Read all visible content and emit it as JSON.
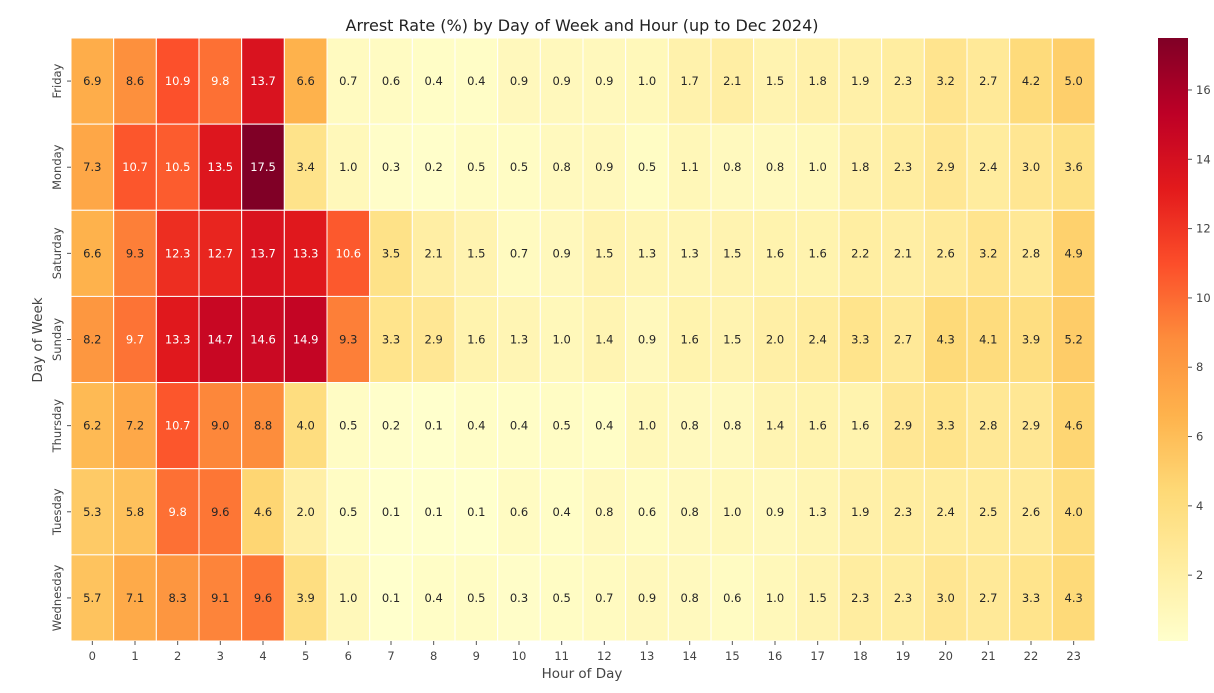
{
  "chart_data": {
    "type": "heatmap",
    "title": "Arrest Rate (%) by Day of Week and Hour (up to Dec 2024)",
    "xlabel": "Hour of Day",
    "ylabel": "Day of Week",
    "x": [
      "0",
      "1",
      "2",
      "3",
      "4",
      "5",
      "6",
      "7",
      "8",
      "9",
      "10",
      "11",
      "12",
      "13",
      "14",
      "15",
      "16",
      "17",
      "18",
      "19",
      "20",
      "21",
      "22",
      "23"
    ],
    "y": [
      "Friday",
      "Monday",
      "Saturday",
      "Sunday",
      "Thursday",
      "Tuesday",
      "Wednesday"
    ],
    "values": [
      [
        6.9,
        8.6,
        10.9,
        9.8,
        13.7,
        6.6,
        0.7,
        0.6,
        0.4,
        0.4,
        0.9,
        0.9,
        0.9,
        1.0,
        1.7,
        2.1,
        1.5,
        1.8,
        1.9,
        2.3,
        3.2,
        2.7,
        4.2,
        5.0
      ],
      [
        7.3,
        10.7,
        10.5,
        13.5,
        17.5,
        3.4,
        1.0,
        0.3,
        0.2,
        0.5,
        0.5,
        0.8,
        0.9,
        0.5,
        1.1,
        0.8,
        0.8,
        1.0,
        1.8,
        2.3,
        2.9,
        2.4,
        3.0,
        3.6
      ],
      [
        6.6,
        9.3,
        12.3,
        12.7,
        13.7,
        13.3,
        10.6,
        3.5,
        2.1,
        1.5,
        0.7,
        0.9,
        1.5,
        1.3,
        1.3,
        1.5,
        1.6,
        1.6,
        2.2,
        2.1,
        2.6,
        3.2,
        2.8,
        4.9
      ],
      [
        8.2,
        9.7,
        13.3,
        14.7,
        14.6,
        14.9,
        9.3,
        3.3,
        2.9,
        1.6,
        1.3,
        1.0,
        1.4,
        0.9,
        1.6,
        1.5,
        2.0,
        2.4,
        3.3,
        2.7,
        4.3,
        4.1,
        3.9,
        5.2
      ],
      [
        6.2,
        7.2,
        10.7,
        9.0,
        8.8,
        4.0,
        0.5,
        0.2,
        0.1,
        0.4,
        0.4,
        0.5,
        0.4,
        1.0,
        0.8,
        0.8,
        1.4,
        1.6,
        1.6,
        2.9,
        3.3,
        2.8,
        2.9,
        4.6
      ],
      [
        5.3,
        5.8,
        9.8,
        9.6,
        4.6,
        2.0,
        0.5,
        0.1,
        0.1,
        0.1,
        0.6,
        0.4,
        0.8,
        0.6,
        0.8,
        1.0,
        0.9,
        1.3,
        1.9,
        2.3,
        2.4,
        2.5,
        2.6,
        4.0
      ],
      [
        5.7,
        7.1,
        8.3,
        9.1,
        9.6,
        3.9,
        1.0,
        0.1,
        0.4,
        0.5,
        0.3,
        0.5,
        0.7,
        0.9,
        0.8,
        0.6,
        1.0,
        1.5,
        2.3,
        2.3,
        3.0,
        2.7,
        3.3,
        4.3
      ]
    ],
    "colormap": "YlOrRd",
    "colorbar": {
      "range": [
        0.1,
        17.5
      ],
      "ticks": [
        2,
        4,
        6,
        8,
        10,
        12,
        14,
        16
      ]
    },
    "annotations": "cell values shown with one decimal",
    "grid": false,
    "legend": "colorbar-right"
  }
}
